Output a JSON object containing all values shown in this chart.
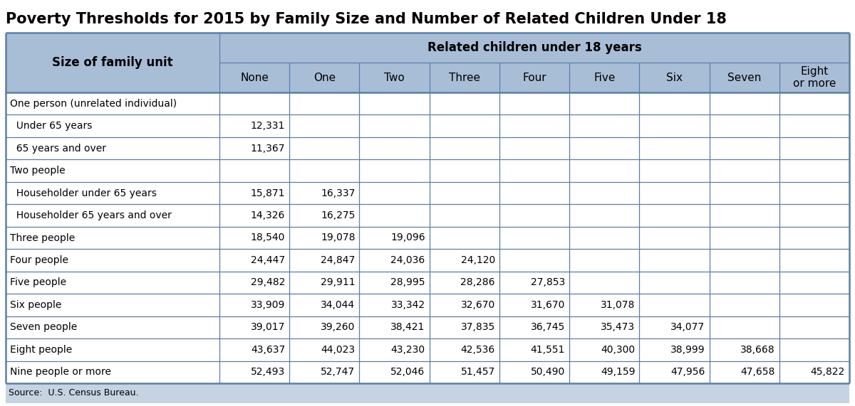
{
  "title": "Poverty Thresholds for 2015 by Family Size and Number of Related Children Under 18",
  "source": "Source:  U.S. Census Bureau.",
  "header_row1_label": "Related children under 18 years",
  "header_size_label": "Size of family unit",
  "col_headers": [
    "None",
    "One",
    "Two",
    "Three",
    "Four",
    "Five",
    "Six",
    "Seven",
    "Eight\nor more"
  ],
  "rows": [
    {
      "label": "One person (unrelated individual)",
      "indent": 0,
      "values": [
        "",
        "",
        "",
        "",
        "",
        "",
        "",
        "",
        ""
      ]
    },
    {
      "label": "  Under 65 years",
      "indent": 1,
      "values": [
        "12,331",
        "",
        "",
        "",
        "",
        "",
        "",
        "",
        ""
      ]
    },
    {
      "label": "  65 years and over",
      "indent": 1,
      "values": [
        "11,367",
        "",
        "",
        "",
        "",
        "",
        "",
        "",
        ""
      ]
    },
    {
      "label": "Two people",
      "indent": 0,
      "values": [
        "",
        "",
        "",
        "",
        "",
        "",
        "",
        "",
        ""
      ]
    },
    {
      "label": "  Householder under 65 years",
      "indent": 1,
      "values": [
        "15,871",
        "16,337",
        "",
        "",
        "",
        "",
        "",
        "",
        ""
      ]
    },
    {
      "label": "  Householder 65 years and over",
      "indent": 1,
      "values": [
        "14,326",
        "16,275",
        "",
        "",
        "",
        "",
        "",
        "",
        ""
      ]
    },
    {
      "label": "Three people",
      "indent": 0,
      "values": [
        "18,540",
        "19,078",
        "19,096",
        "",
        "",
        "",
        "",
        "",
        ""
      ]
    },
    {
      "label": "Four people",
      "indent": 0,
      "values": [
        "24,447",
        "24,847",
        "24,036",
        "24,120",
        "",
        "",
        "",
        "",
        ""
      ]
    },
    {
      "label": "Five people",
      "indent": 0,
      "values": [
        "29,482",
        "29,911",
        "28,995",
        "28,286",
        "27,853",
        "",
        "",
        "",
        ""
      ]
    },
    {
      "label": "Six people",
      "indent": 0,
      "values": [
        "33,909",
        "34,044",
        "33,342",
        "32,670",
        "31,670",
        "31,078",
        "",
        "",
        ""
      ]
    },
    {
      "label": "Seven people",
      "indent": 0,
      "values": [
        "39,017",
        "39,260",
        "38,421",
        "37,835",
        "36,745",
        "35,473",
        "34,077",
        "",
        ""
      ]
    },
    {
      "label": "Eight people",
      "indent": 0,
      "values": [
        "43,637",
        "44,023",
        "43,230",
        "42,536",
        "41,551",
        "40,300",
        "38,999",
        "38,668",
        ""
      ]
    },
    {
      "label": "Nine people or more",
      "indent": 0,
      "values": [
        "52,493",
        "52,747",
        "52,046",
        "51,457",
        "50,490",
        "49,159",
        "47,956",
        "47,658",
        "45,822"
      ]
    }
  ],
  "header_bg": "#a8bdd6",
  "source_bg": "#c5d3e3",
  "fig_bg": "#ffffff",
  "title_color": "#000000",
  "header_text_color": "#000000",
  "cell_text_color": "#000000",
  "border_color": "#5a7fa8",
  "inner_line_color": "#5a7fa8",
  "title_fontsize": 15,
  "header_fontsize": 11,
  "cell_fontsize": 10,
  "source_fontsize": 9
}
